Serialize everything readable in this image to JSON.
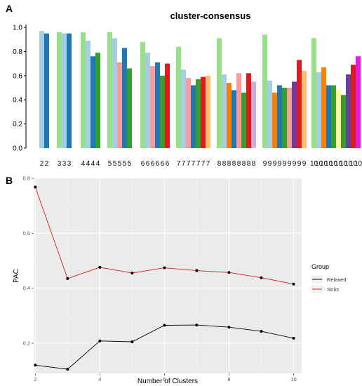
{
  "panels": {
    "a": "A",
    "b": "B"
  },
  "chart_data": [
    {
      "type": "bar",
      "title": "cluster-consensus",
      "ylim": [
        0,
        1.0
      ],
      "yticks": [
        "0.0",
        "0.2",
        "0.4",
        "0.6",
        "0.8",
        "1.0"
      ],
      "grid": false,
      "groups": [
        {
          "labels": [
            "2",
            "2"
          ],
          "values": [
            0.97,
            0.95
          ],
          "colors": [
            "#a6cee3",
            "#1f78b4"
          ]
        },
        {
          "labels": [
            "3",
            "3",
            "3"
          ],
          "values": [
            0.96,
            0.95,
            0.95
          ],
          "colors": [
            "#98df8a",
            "#a6cee3",
            "#1f78b4"
          ]
        },
        {
          "labels": [
            "4",
            "4",
            "4",
            "4"
          ],
          "values": [
            0.96,
            0.89,
            0.76,
            0.79
          ],
          "colors": [
            "#98df8a",
            "#a6cee3",
            "#1f78b4",
            "#33a02c"
          ]
        },
        {
          "labels": [
            "5",
            "5",
            "5",
            "5",
            "5"
          ],
          "values": [
            0.96,
            0.91,
            0.71,
            0.83,
            0.66
          ],
          "colors": [
            "#98df8a",
            "#a6cee3",
            "#fb9a99",
            "#1f78b4",
            "#33a02c"
          ]
        },
        {
          "labels": [
            "6",
            "6",
            "6",
            "6",
            "6",
            "6"
          ],
          "values": [
            0.88,
            0.79,
            0.68,
            0.71,
            0.6,
            0.7
          ],
          "colors": [
            "#98df8a",
            "#a6cee3",
            "#fb9a99",
            "#1f78b4",
            "#33a02c",
            "#e31a1c"
          ]
        },
        {
          "labels": [
            "7",
            "7",
            "7",
            "7",
            "7",
            "7",
            "7"
          ],
          "values": [
            0.84,
            0.65,
            0.58,
            0.52,
            0.57,
            0.59,
            0.6
          ],
          "colors": [
            "#98df8a",
            "#a6cee3",
            "#fb9a99",
            "#1f78b4",
            "#33a02c",
            "#e31a1c",
            "#fdbf6f"
          ]
        },
        {
          "labels": [
            "8",
            "8",
            "8",
            "8",
            "8",
            "8",
            "8",
            "8"
          ],
          "values": [
            0.91,
            0.61,
            0.54,
            0.48,
            0.62,
            0.46,
            0.62,
            0.55
          ],
          "colors": [
            "#98df8a",
            "#a6cee3",
            "#ff7f00",
            "#1f78b4",
            "#fb9a99",
            "#33a02c",
            "#e31a1c",
            "#cab2d6"
          ]
        },
        {
          "labels": [
            "9",
            "9",
            "9",
            "9",
            "9",
            "9",
            "9",
            "9",
            "9"
          ],
          "values": [
            0.94,
            0.56,
            0.46,
            0.52,
            0.5,
            0.5,
            0.55,
            0.73,
            0.64
          ],
          "colors": [
            "#98df8a",
            "#a6cee3",
            "#ff7f00",
            "#1f78b4",
            "#33a02c",
            "#fb9a99",
            "#6a3d9a",
            "#e31a1c",
            "#fdbf6f"
          ]
        },
        {
          "labels": [
            "10",
            "10",
            "10",
            "10",
            "10",
            "10",
            "10",
            "10",
            "10",
            "10"
          ],
          "values": [
            0.91,
            0.63,
            0.67,
            0.52,
            0.52,
            0.48,
            0.44,
            0.61,
            0.69,
            0.76
          ],
          "colors": [
            "#98df8a",
            "#a6cee3",
            "#ff7f00",
            "#1f78b4",
            "#33a02c",
            "#ffff99",
            "#33a02c",
            "#6a3d9a",
            "#e31a1c",
            "#e31ae8"
          ]
        }
      ]
    },
    {
      "type": "line",
      "xlabel": "Number of Clusters",
      "ylabel": "PAC",
      "x": [
        2,
        3,
        4,
        5,
        6,
        7,
        8,
        9,
        10
      ],
      "xticks": [
        2,
        4,
        6,
        8,
        10
      ],
      "yticks": [
        "0.2",
        "0.4",
        "0.6",
        "0.8"
      ],
      "xlim": [
        1.95,
        10.25
      ],
      "ylim": [
        0.09,
        0.8
      ],
      "grid": true,
      "legend_position": "right",
      "legend_title": "Group",
      "series": [
        {
          "name": "Relaxed",
          "color": "#000000",
          "values": [
            0.12,
            0.105,
            0.208,
            0.205,
            0.265,
            0.266,
            0.258,
            0.243,
            0.218
          ]
        },
        {
          "name": "Strict",
          "color": "#e31a1c",
          "values": [
            0.768,
            0.435,
            0.476,
            0.455,
            0.474,
            0.464,
            0.457,
            0.438,
            0.415
          ]
        }
      ]
    }
  ]
}
